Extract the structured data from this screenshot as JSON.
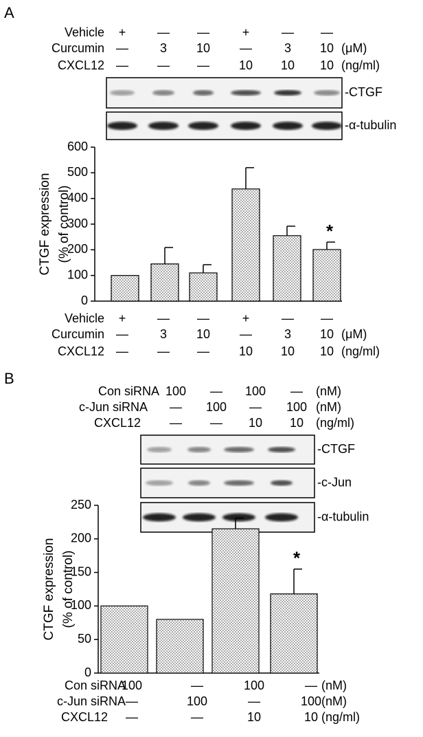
{
  "panels": [
    {
      "label": "A",
      "treatments": [
        {
          "name": "Vehicle",
          "cells": [
            "+",
            "—",
            "—",
            "+",
            "—",
            "—"
          ]
        },
        {
          "name": "Curcumin",
          "cells": [
            "—",
            "3",
            "10",
            "—",
            "3",
            "10"
          ],
          "unit": "(μM)"
        },
        {
          "name": "CXCL12",
          "cells": [
            "—",
            "—",
            "—",
            "10",
            "10",
            "10"
          ],
          "unit": "(ng/ml)"
        }
      ],
      "blots": [
        "-CTGF",
        "-α-tubulin"
      ]
    },
    {
      "label": "B",
      "treatments": [
        {
          "name": "Con siRNA",
          "cells": [
            "100",
            "—",
            "100",
            "—"
          ],
          "unit": "(nM)"
        },
        {
          "name": "c-Jun siRNA",
          "cells": [
            "—",
            "100",
            "—",
            "100"
          ],
          "unit": "(nM)"
        },
        {
          "name": "CXCL12",
          "cells": [
            "—",
            "—",
            "10",
            "10"
          ],
          "unit": "(ng/ml)"
        }
      ],
      "blots": [
        "-CTGF",
        "-c-Jun",
        "-α-tubulin"
      ]
    }
  ],
  "chart_data": [
    {
      "type": "bar",
      "y_label": [
        "CTGF expression",
        "(% of control)"
      ],
      "values": [
        100,
        145,
        110,
        437,
        255,
        201
      ],
      "errors": [
        null,
        64,
        32,
        83,
        37,
        29
      ],
      "markers": [
        null,
        null,
        null,
        null,
        null,
        "*"
      ],
      "ylim": [
        0,
        600
      ],
      "yticks": [
        0,
        100,
        200,
        300,
        400,
        500,
        600
      ]
    },
    {
      "type": "bar",
      "y_label": [
        "CTGF expression",
        "(% of control)"
      ],
      "values": [
        100,
        80,
        215,
        118
      ],
      "errors": [
        null,
        null,
        16,
        37
      ],
      "markers": [
        null,
        null,
        null,
        "*"
      ],
      "ylim": [
        0,
        250
      ],
      "yticks": [
        0,
        50,
        100,
        150,
        200,
        250
      ]
    }
  ]
}
